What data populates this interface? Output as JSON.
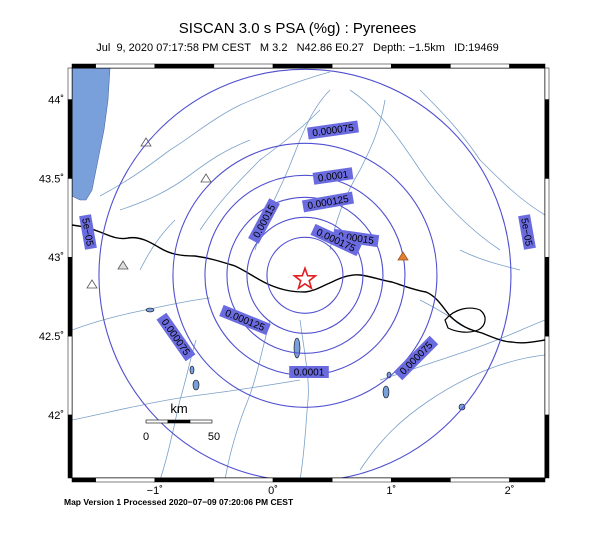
{
  "title": "SISCAN 3.0 s PSA (%g) : Pyrenees",
  "subtitle": "Jul  9, 2020 07:17:58 PM CEST   M 3.2   N42.86 E0.27   Depth: −1.5km   ID:19469",
  "footer": "Map Version 1 Processed 2020−07−09 07:20:06 PM CEST",
  "axes": {
    "lat_ticks": [
      {
        "value": 42.0,
        "label": "42˚"
      },
      {
        "value": 42.5,
        "label": "42.5˚"
      },
      {
        "value": 43.0,
        "label": "43˚"
      },
      {
        "value": 43.5,
        "label": "43.5˚"
      },
      {
        "value": 44.0,
        "label": "44˚"
      }
    ],
    "lon_ticks": [
      {
        "value": -1,
        "label": "−1˚"
      },
      {
        "value": 0,
        "label": "0˚"
      },
      {
        "value": 1,
        "label": "1˚"
      },
      {
        "value": 2,
        "label": "2˚"
      }
    ],
    "lon_range": [
      -1.7,
      2.3
    ],
    "lat_range": [
      41.6,
      44.2
    ]
  },
  "epicenter": {
    "lat": 42.86,
    "lon": 0.27,
    "symbol": "star-icon",
    "color": "#e02020"
  },
  "contour_labels": [
    {
      "text": "0.000075"
    },
    {
      "text": "0.0001"
    },
    {
      "text": "0.000125"
    },
    {
      "text": "0.00015"
    },
    {
      "text": "0.00015"
    },
    {
      "text": "0.000175"
    },
    {
      "text": "0.000125"
    },
    {
      "text": "5e−05"
    },
    {
      "text": "5e−05"
    },
    {
      "text": "0.000075"
    },
    {
      "text": "0.0001"
    },
    {
      "text": "0.000075"
    }
  ],
  "scale_bar": {
    "unit": "km",
    "start_label": "0",
    "end_label": "50"
  },
  "colors": {
    "contour": "#5050d0",
    "label_bg": "#6b6be0",
    "sea": "#7aa0dc",
    "border": "#000000",
    "rivers": "#7aa0c8",
    "station_triangle": "#888888",
    "station_active": "#e08030"
  }
}
